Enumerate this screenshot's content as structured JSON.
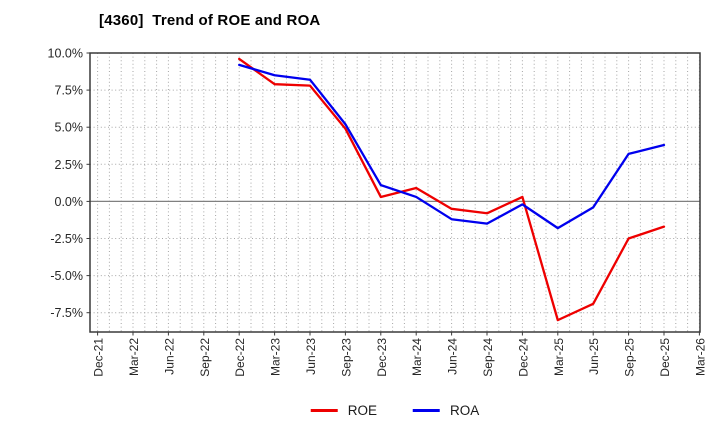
{
  "chart_data": {
    "type": "line",
    "title": "[4360]  Trend of ROE and ROA",
    "xlabel": "",
    "ylabel": "",
    "grid": true,
    "legend_position": "bottom-center",
    "ylim": [
      -8.8,
      10.0
    ],
    "y_ticks": [
      10.0,
      7.5,
      5.0,
      2.5,
      0.0,
      -2.5,
      -5.0,
      -7.5
    ],
    "y_tick_labels": [
      "10.0%",
      "7.5%",
      "5.0%",
      "2.5%",
      "0.0%",
      "-2.5%",
      "-5.0%",
      "-7.5%"
    ],
    "categories": [
      "Dec-21",
      "Mar-22",
      "Jun-22",
      "Sep-22",
      "Dec-22",
      "Mar-23",
      "Jun-23",
      "Sep-23",
      "Dec-23",
      "Mar-24",
      "Jun-24",
      "Sep-24",
      "Dec-24",
      "Mar-25",
      "Jun-25",
      "Sep-25",
      "Dec-25",
      "Mar-26"
    ],
    "series": [
      {
        "name": "ROE",
        "color": "#ee0000",
        "start_index": 4,
        "values": [
          9.6,
          7.9,
          7.8,
          4.9,
          0.3,
          0.9,
          -0.5,
          -0.8,
          0.3,
          -8.0,
          -6.9,
          -2.5,
          -1.7
        ]
      },
      {
        "name": "ROA",
        "color": "#0000ee",
        "start_index": 4,
        "values": [
          9.2,
          8.5,
          8.2,
          5.2,
          1.1,
          0.3,
          -1.2,
          -1.5,
          -0.2,
          -1.8,
          -0.4,
          3.2,
          3.8
        ]
      }
    ],
    "colors": {
      "grid": "#a6a6a6",
      "zero_line": "#808080",
      "frame": "#3a3a3a",
      "tick_text": "#262626"
    }
  }
}
